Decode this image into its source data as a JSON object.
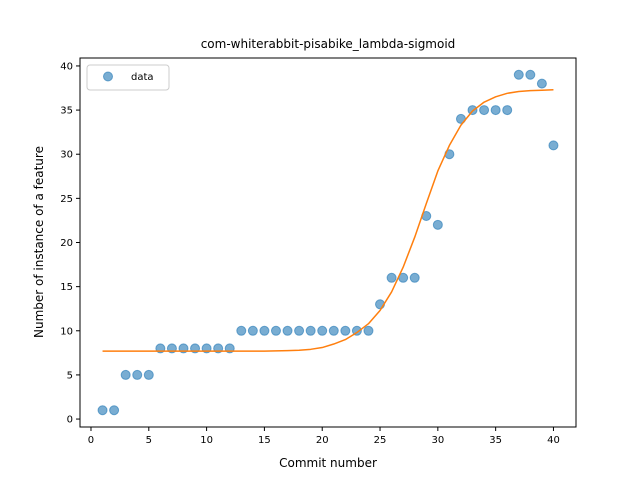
{
  "chart_data": {
    "type": "scatter",
    "title": "com-whiterabbit-pisabike_lambda-sigmoid",
    "xlabel": "Commit number",
    "ylabel": "Number of instance of a feature",
    "xlim": [
      -0.95,
      41.95
    ],
    "ylim": [
      -0.9,
      40.9
    ],
    "xticks": [
      0,
      5,
      10,
      15,
      20,
      25,
      30,
      35,
      40
    ],
    "yticks": [
      0,
      5,
      10,
      15,
      20,
      25,
      30,
      35,
      40
    ],
    "grid": false,
    "legend_position": "top-left",
    "series": [
      {
        "name": "data",
        "kind": "scatter",
        "color": "#1f77b4",
        "x": [
          1,
          2,
          3,
          4,
          5,
          6,
          7,
          8,
          9,
          10,
          11,
          12,
          13,
          14,
          15,
          16,
          17,
          18,
          19,
          20,
          21,
          22,
          23,
          24,
          25,
          26,
          27,
          28,
          29,
          30,
          31,
          32,
          33,
          34,
          35,
          36,
          37,
          38,
          39,
          40
        ],
        "y": [
          1,
          1,
          5,
          5,
          5,
          8,
          8,
          8,
          8,
          8,
          8,
          8,
          10,
          10,
          10,
          10,
          10,
          10,
          10,
          10,
          10,
          10,
          10,
          10,
          13,
          16,
          16,
          16,
          23,
          22,
          30,
          34,
          35,
          35,
          35,
          35,
          39,
          39,
          38,
          31
        ]
      },
      {
        "kind": "line",
        "color": "#ff7f0e",
        "x": [
          1,
          2,
          3,
          4,
          5,
          6,
          7,
          8,
          9,
          10,
          11,
          12,
          13,
          14,
          15,
          16,
          17,
          18,
          19,
          20,
          21,
          22,
          23,
          24,
          25,
          26,
          27,
          28,
          29,
          30,
          31,
          32,
          33,
          34,
          35,
          36,
          37,
          38,
          39,
          40
        ],
        "y": [
          7.7,
          7.7,
          7.7,
          7.7,
          7.7,
          7.7,
          7.7,
          7.7,
          7.7,
          7.7,
          7.7,
          7.7,
          7.7,
          7.7,
          7.7,
          7.72,
          7.75,
          7.8,
          7.9,
          8.1,
          8.5,
          9.0,
          9.8,
          10.8,
          12.3,
          14.4,
          17.2,
          20.6,
          24.4,
          28.1,
          31.0,
          33.3,
          34.9,
          35.9,
          36.5,
          36.9,
          37.1,
          37.2,
          37.25,
          37.3
        ]
      }
    ]
  }
}
